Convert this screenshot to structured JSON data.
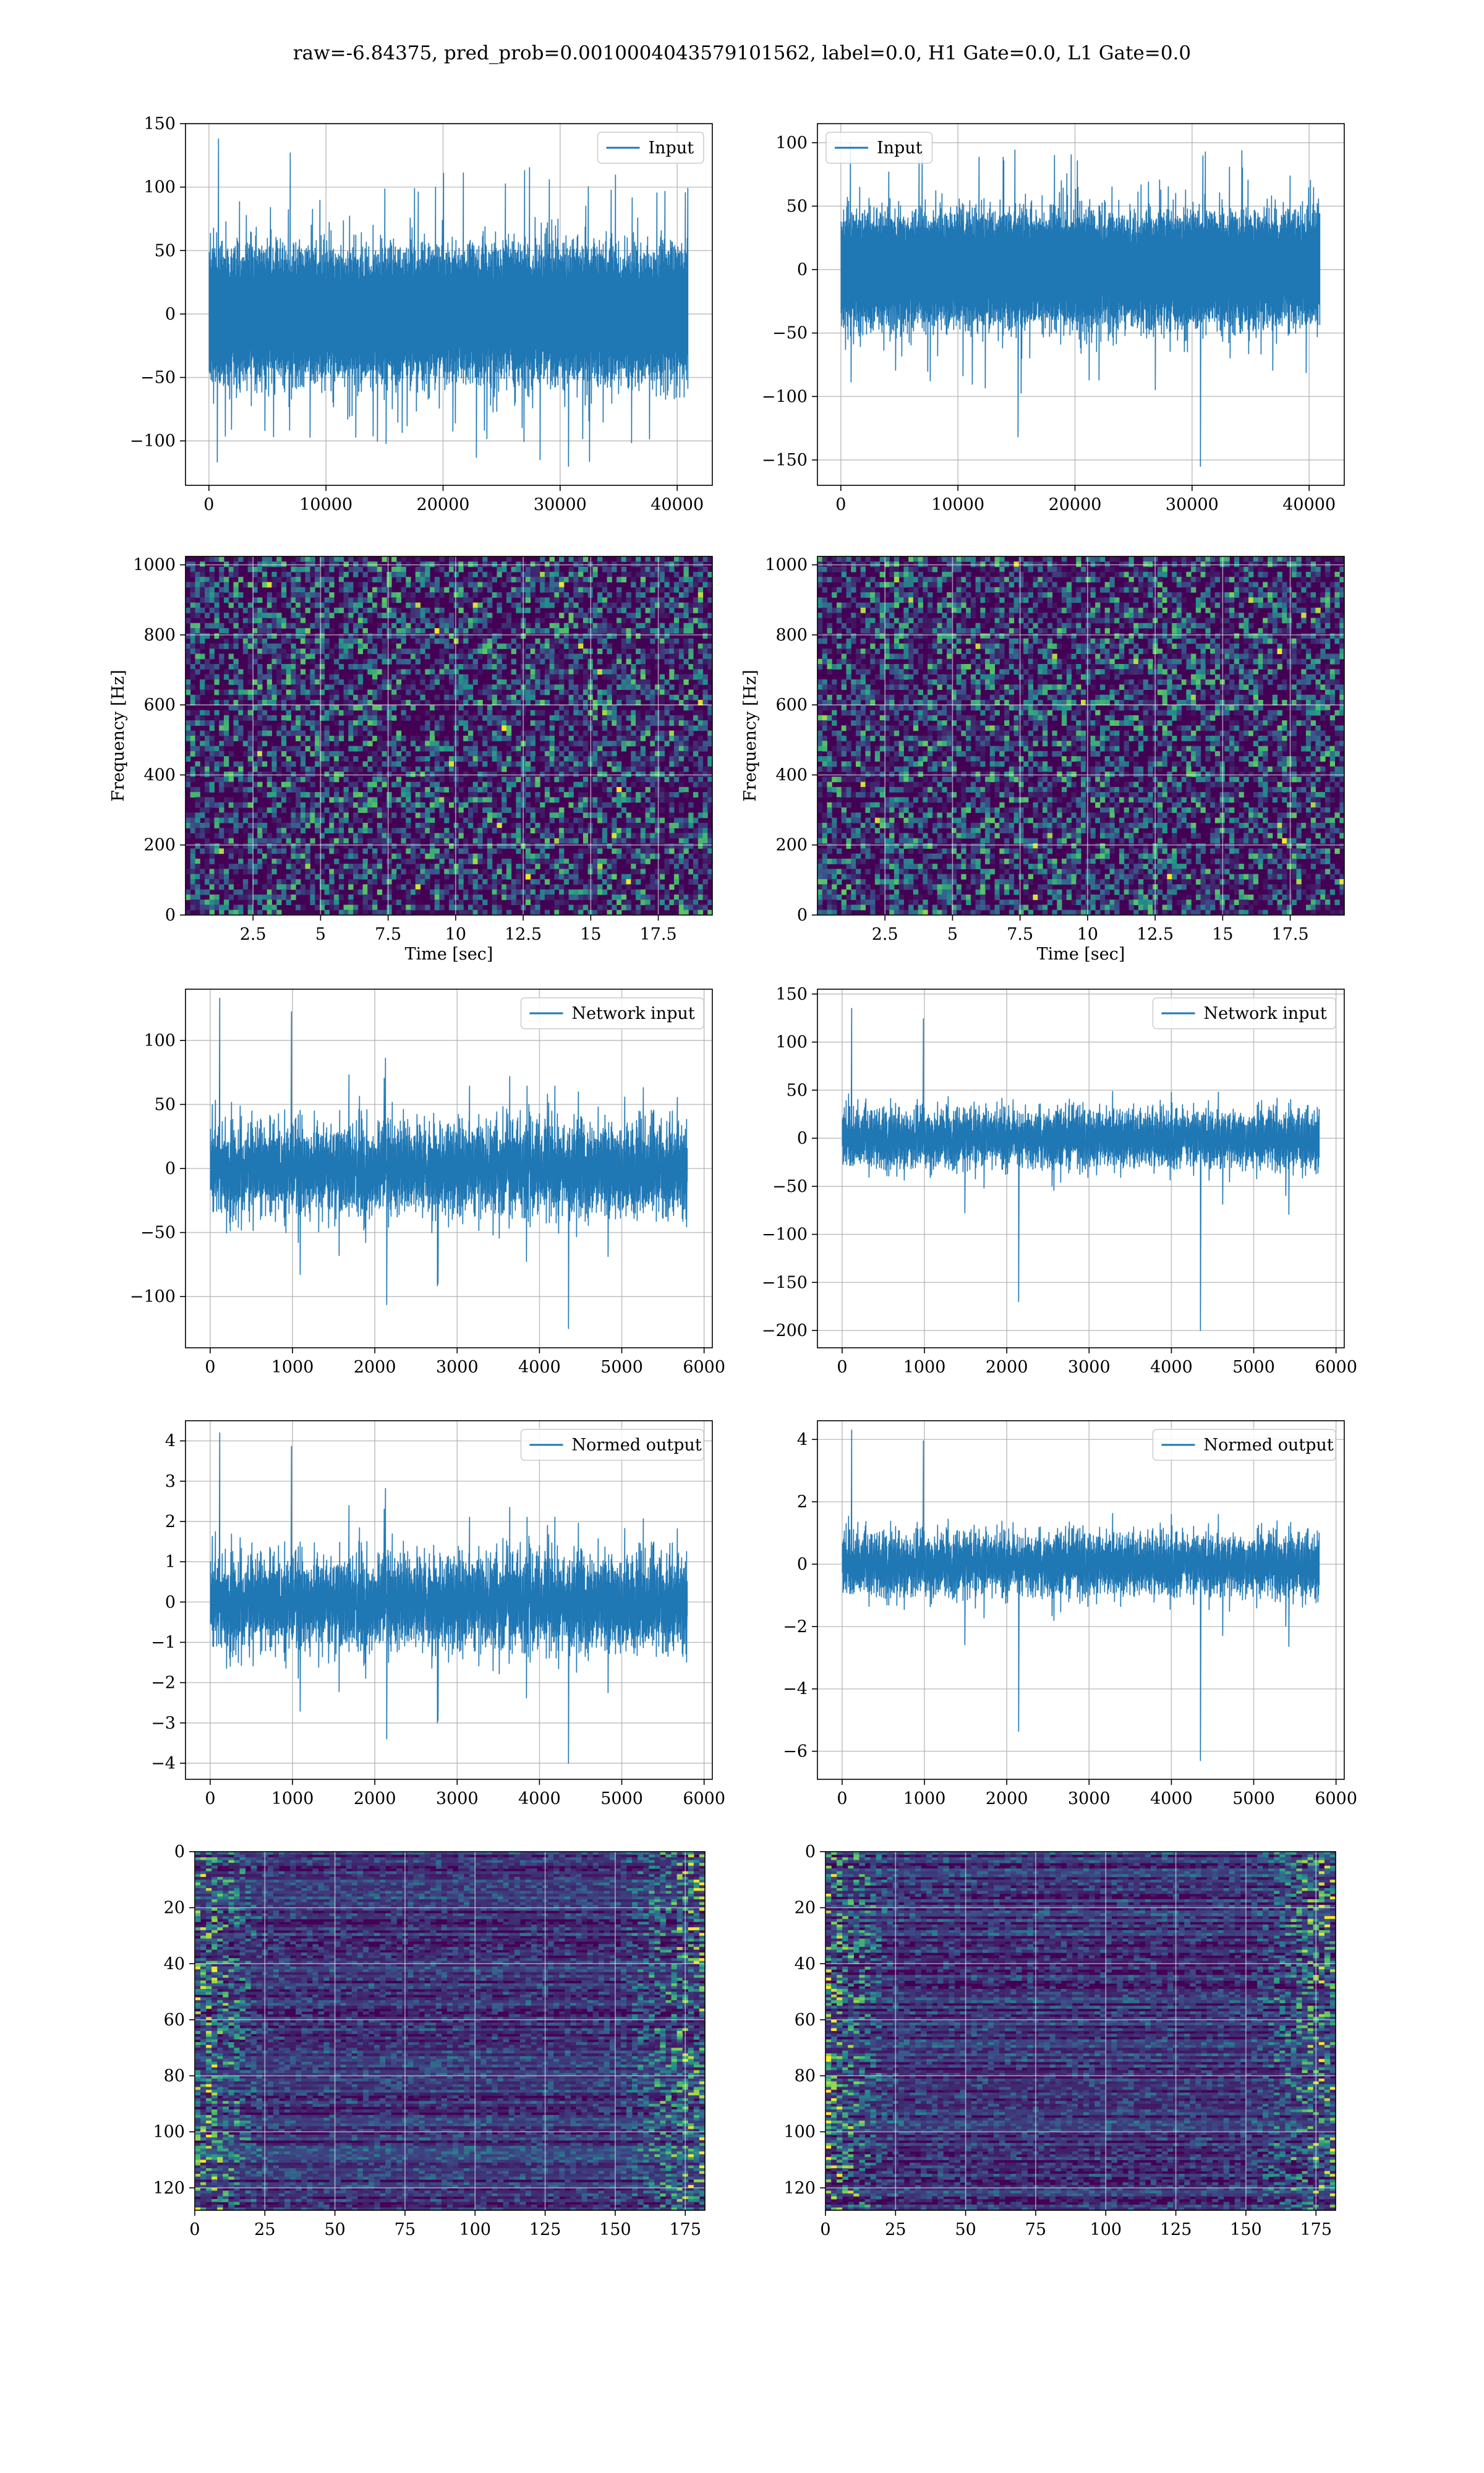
{
  "figure": {
    "suptitle": "raw=-6.84375, pred_prob=0.0010004043579101562, label=0.0, H1 Gate=0.0, L1 Gate=0.0"
  },
  "colors": {
    "line": "#1f77b4",
    "grid": "#b0b0b0",
    "viridis_low": "#440154",
    "viridis_mid": "#21918c",
    "viridis_high": "#fde725"
  },
  "chart_data": [
    {
      "id": "input-h1",
      "type": "line",
      "legend": "Input",
      "legend_loc": "upper right",
      "xlim": [
        -2000,
        43000
      ],
      "ylim": [
        -135,
        150
      ],
      "xticks": [
        0,
        10000,
        20000,
        30000,
        40000
      ],
      "yticks": [
        -100,
        -50,
        0,
        50,
        100,
        150
      ],
      "n_points": 40960,
      "envelope": {
        "core": 65,
        "peak_max": 138,
        "peak_min": -120
      },
      "grid": true
    },
    {
      "id": "input-l1",
      "type": "line",
      "legend": "Input",
      "legend_loc": "upper left",
      "xlim": [
        -2000,
        43000
      ],
      "ylim": [
        -170,
        115
      ],
      "xticks": [
        0,
        10000,
        20000,
        30000,
        40000
      ],
      "yticks": [
        -150,
        -100,
        -50,
        0,
        50,
        100
      ],
      "n_points": 40960,
      "envelope": {
        "core": 55,
        "peak_max": 100,
        "peak_min": -155
      },
      "grid": true
    },
    {
      "id": "spec-h1",
      "type": "heatmap",
      "xlabel": "Time [sec]",
      "ylabel": "Frequency [Hz]",
      "xlim": [
        0,
        19.5
      ],
      "ylim": [
        0,
        1024
      ],
      "xticks": [
        2.5,
        5.0,
        7.5,
        10.0,
        12.5,
        15.0,
        17.5
      ],
      "yticks": [
        0,
        200,
        400,
        600,
        800,
        1000
      ],
      "grid": true
    },
    {
      "id": "spec-l1",
      "type": "heatmap",
      "xlabel": "Time [sec]",
      "ylabel": "Frequency [Hz]",
      "xlim": [
        0,
        19.5
      ],
      "ylim": [
        0,
        1024
      ],
      "xticks": [
        2.5,
        5.0,
        7.5,
        10.0,
        12.5,
        15.0,
        17.5
      ],
      "yticks": [
        0,
        200,
        400,
        600,
        800,
        1000
      ],
      "grid": true
    },
    {
      "id": "net-h1",
      "type": "line",
      "legend": "Network input",
      "legend_loc": "upper right",
      "xlim": [
        -300,
        6100
      ],
      "ylim": [
        -140,
        140
      ],
      "xticks": [
        0,
        1000,
        2000,
        3000,
        4000,
        5000,
        6000
      ],
      "yticks": [
        -100,
        -50,
        0,
        50,
        100
      ],
      "n_points": 5800,
      "envelope": {
        "core": 55,
        "peak_max": 133,
        "peak_min": -125
      },
      "grid": true
    },
    {
      "id": "net-l1",
      "type": "line",
      "legend": "Network input",
      "legend_loc": "upper right",
      "xlim": [
        -300,
        6100
      ],
      "ylim": [
        -218,
        155
      ],
      "xticks": [
        0,
        1000,
        2000,
        3000,
        4000,
        5000,
        6000
      ],
      "yticks": [
        -200,
        -150,
        -100,
        -50,
        0,
        50,
        100,
        150
      ],
      "n_points": 5800,
      "envelope": {
        "core": 45,
        "peak_max": 135,
        "peak_min": -200
      },
      "grid": true
    },
    {
      "id": "norm-h1",
      "type": "line",
      "legend": "Normed output",
      "legend_loc": "upper right",
      "xlim": [
        -300,
        6100
      ],
      "ylim": [
        -4.4,
        4.5
      ],
      "xticks": [
        0,
        1000,
        2000,
        3000,
        4000,
        5000,
        6000
      ],
      "yticks": [
        -4,
        -3,
        -2,
        -1,
        0,
        1,
        2,
        3,
        4
      ],
      "n_points": 5800,
      "envelope": {
        "core": 1.8,
        "peak_max": 4.2,
        "peak_min": -4.0
      },
      "grid": true
    },
    {
      "id": "norm-l1",
      "type": "line",
      "legend": "Normed output",
      "legend_loc": "upper right",
      "xlim": [
        -300,
        6100
      ],
      "ylim": [
        -6.9,
        4.6
      ],
      "xticks": [
        0,
        1000,
        2000,
        3000,
        4000,
        5000,
        6000
      ],
      "yticks": [
        -6,
        -4,
        -2,
        0,
        2,
        4
      ],
      "n_points": 5800,
      "envelope": {
        "core": 1.5,
        "peak_max": 4.3,
        "peak_min": -6.3
      },
      "grid": true
    },
    {
      "id": "feat-h1",
      "type": "heatmap",
      "xlim": [
        0,
        182
      ],
      "ylim": [
        128,
        0
      ],
      "xticks": [
        0,
        25,
        50,
        75,
        100,
        125,
        150,
        175
      ],
      "yticks": [
        0,
        20,
        40,
        60,
        80,
        100,
        120
      ],
      "grid": true
    },
    {
      "id": "feat-l1",
      "type": "heatmap",
      "xlim": [
        0,
        182
      ],
      "ylim": [
        128,
        0
      ],
      "xticks": [
        0,
        25,
        50,
        75,
        100,
        125,
        150,
        175
      ],
      "yticks": [
        0,
        20,
        40,
        60,
        80,
        100,
        120
      ],
      "grid": true
    }
  ]
}
